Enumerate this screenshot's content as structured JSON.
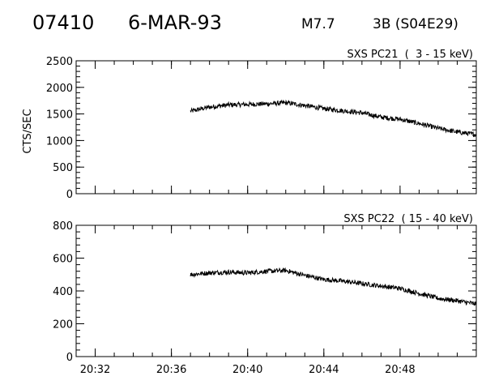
{
  "header": {
    "flare_id": "07410",
    "date": "6-MAR-93",
    "goes_class": "M7.7",
    "importance_location": "3B (S04E29)"
  },
  "chart_data": [
    {
      "type": "line",
      "title": "SXS PC21  (  3 - 15 keV)",
      "ylabel": "CTS/SEC",
      "xlabel": "",
      "xlim": [
        "20:31",
        "20:52"
      ],
      "ylim": [
        0,
        2500
      ],
      "y_ticks": [
        0,
        500,
        1000,
        1500,
        2000,
        2500
      ],
      "y_tick_labels": [
        "0",
        "500",
        "1000",
        "1500",
        "2000",
        "2500"
      ],
      "x_ticks": [
        "20:32",
        "20:36",
        "20:40",
        "20:44",
        "20:48"
      ],
      "show_x_tick_labels": false,
      "series": [
        {
          "x": [
            "20:37",
            "20:38",
            "20:39",
            "20:40",
            "20:41",
            "20:42",
            "20:43",
            "20:44",
            "20:45",
            "20:46",
            "20:47",
            "20:48",
            "20:49",
            "20:50",
            "20:51",
            "20:52"
          ],
          "y": [
            1550,
            1630,
            1670,
            1680,
            1690,
            1710,
            1660,
            1600,
            1560,
            1520,
            1440,
            1400,
            1320,
            1230,
            1160,
            1110
          ]
        }
      ]
    },
    {
      "type": "line",
      "title": "SXS PC22  ( 15 - 40 keV)",
      "ylabel": "",
      "xlabel": "",
      "xlim": [
        "20:31",
        "20:52"
      ],
      "ylim": [
        0,
        800
      ],
      "y_ticks": [
        0,
        200,
        400,
        600,
        800
      ],
      "y_tick_labels": [
        "0",
        "200",
        "400",
        "600",
        "800"
      ],
      "x_ticks": [
        "20:32",
        "20:36",
        "20:40",
        "20:44",
        "20:48"
      ],
      "x_tick_labels": [
        "20:32",
        "20:36",
        "20:40",
        "20:44",
        "20:48"
      ],
      "show_x_tick_labels": true,
      "series": [
        {
          "x": [
            "20:37",
            "20:38",
            "20:39",
            "20:40",
            "20:41",
            "20:42",
            "20:43",
            "20:44",
            "20:45",
            "20:46",
            "20:47",
            "20:48",
            "20:49",
            "20:50",
            "20:51",
            "20:52"
          ],
          "y": [
            500,
            510,
            515,
            510,
            520,
            525,
            495,
            470,
            460,
            445,
            430,
            415,
            385,
            355,
            340,
            320
          ]
        }
      ]
    }
  ]
}
